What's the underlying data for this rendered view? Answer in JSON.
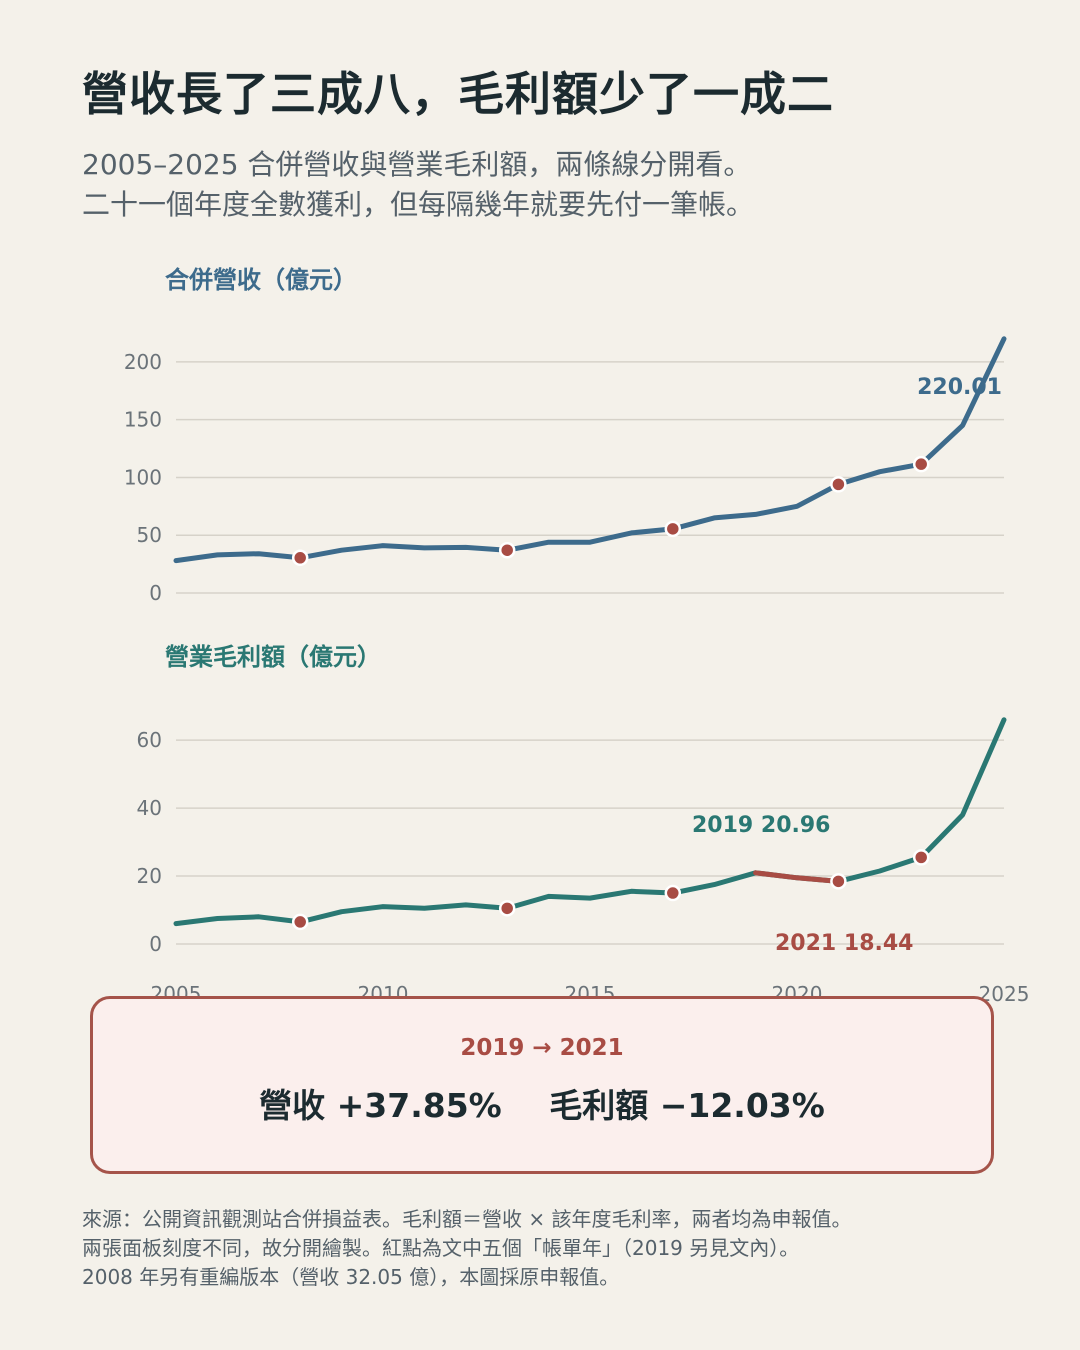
{
  "title": "營收長了三成八，毛利額少了一成二",
  "subtitle": {
    "line1": "2005–2025 合併營收與營業毛利額，兩條線分開看。",
    "line2": "二十一個年度全數獲利，但每隔幾年就要先付一筆帳。"
  },
  "colors": {
    "revenue": "#3d6b8c",
    "profit": "#2a7873",
    "highlight": "#a84c44",
    "grid": "#d6d2c9",
    "axis_text": "#6b7379"
  },
  "chart_data": [
    {
      "type": "line",
      "title": "合併營收（億元）",
      "x": [
        2005,
        2006,
        2007,
        2008,
        2009,
        2010,
        2011,
        2012,
        2013,
        2014,
        2015,
        2016,
        2017,
        2018,
        2019,
        2020,
        2021,
        2022,
        2023,
        2024,
        2025
      ],
      "series": [
        {
          "values": [
            28,
            33,
            34,
            30.5,
            37,
            41,
            39,
            39.5,
            37,
            44,
            44,
            52,
            55.5,
            65,
            68,
            75,
            94,
            105,
            111.5,
            145,
            220.01
          ]
        }
      ],
      "highlight_years": [
        2008,
        2013,
        2017,
        2021,
        2023
      ],
      "ylim": [
        0,
        225
      ],
      "yticks": [
        0,
        50,
        100,
        150,
        200
      ],
      "end_label": "220.01",
      "grid": true
    },
    {
      "type": "line",
      "title": "營業毛利額（億元）",
      "x": [
        2005,
        2006,
        2007,
        2008,
        2009,
        2010,
        2011,
        2012,
        2013,
        2014,
        2015,
        2016,
        2017,
        2018,
        2019,
        2020,
        2021,
        2022,
        2023,
        2024,
        2025
      ],
      "series": [
        {
          "values": [
            6,
            7.5,
            8,
            6.5,
            9.5,
            11,
            10.5,
            11.5,
            10.5,
            14,
            13.5,
            15.5,
            15,
            17.5,
            20.96,
            19.5,
            18.44,
            21.5,
            25.5,
            38,
            66
          ]
        }
      ],
      "highlight_years": [
        2008,
        2013,
        2017,
        2021,
        2023
      ],
      "highlight_segment": [
        2019,
        2021
      ],
      "ylim": [
        0,
        68
      ],
      "yticks": [
        0,
        20,
        40,
        60
      ],
      "xticks": [
        2005,
        2010,
        2015,
        2020,
        2025
      ],
      "annotations": [
        {
          "year": 2019,
          "value": 20.96,
          "label": "2019  20.96"
        },
        {
          "year": 2021,
          "value": 18.44,
          "label": "2021  18.44"
        }
      ],
      "grid": true
    }
  ],
  "callout": {
    "period": "2019 → 2021",
    "revenue_change": "營收 +37.85%",
    "profit_change": "毛利額 −12.03%"
  },
  "footnote": {
    "line1": "來源：公開資訊觀測站合併損益表。毛利額＝營收 × 該年度毛利率，兩者均為申報值。",
    "line2": "兩張面板刻度不同，故分開繪製。紅點為文中五個「帳單年」（2019 另見文內）。",
    "line3": "2008 年另有重編版本（營收 32.05 億），本圖採原申報值。"
  }
}
